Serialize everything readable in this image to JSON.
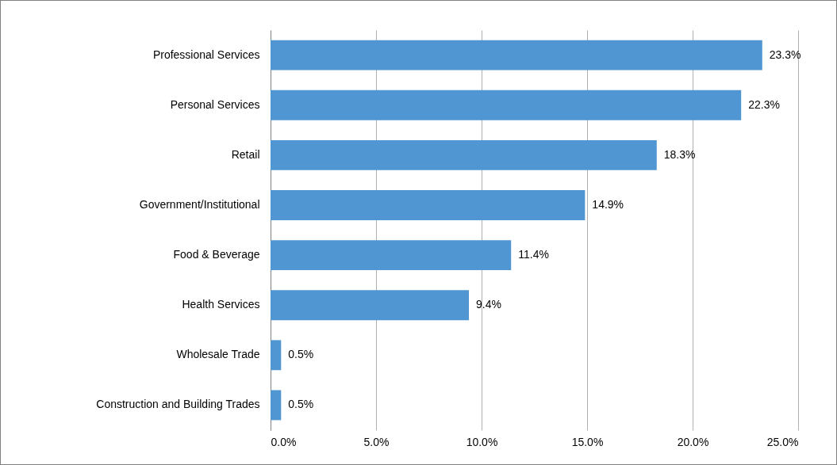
{
  "chart_data": {
    "type": "bar",
    "orientation": "horizontal",
    "categories": [
      "Professional Services",
      "Personal Services",
      "Retail",
      "Government/Institutional",
      "Food & Beverage",
      "Health Services",
      "Wholesale Trade",
      "Construction and Building Trades"
    ],
    "values": [
      23.3,
      22.3,
      18.3,
      14.9,
      11.4,
      9.4,
      0.5,
      0.5
    ],
    "value_labels": [
      "23.3%",
      "22.3%",
      "18.3%",
      "14.9%",
      "11.4%",
      "9.4%",
      "0.5%",
      "0.5%"
    ],
    "color": "#5096d2",
    "xlim": [
      0,
      25
    ],
    "xticks": [
      {
        "value": 0,
        "label": "0.0%"
      },
      {
        "value": 5,
        "label": "5.0%"
      },
      {
        "value": 10,
        "label": "10.0%"
      },
      {
        "value": 15,
        "label": "15.0%"
      },
      {
        "value": 20,
        "label": "20.0%"
      },
      {
        "value": 25,
        "label": "25.0%"
      }
    ],
    "grid": "x"
  }
}
